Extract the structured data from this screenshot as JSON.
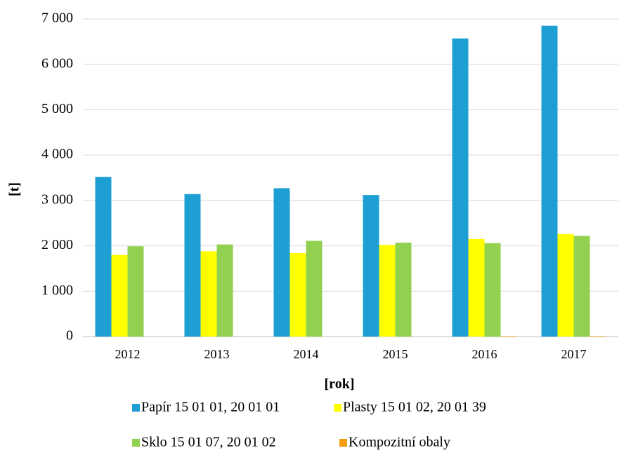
{
  "chart_data": {
    "type": "bar",
    "x_label": "[rok]",
    "y_label": "[t]",
    "categories": [
      "2012",
      "2013",
      "2014",
      "2015",
      "2016",
      "2017"
    ],
    "series": [
      {
        "name": "Papír 15 01 01, 20 01 01",
        "color": "#1e9fd4",
        "values": [
          3520,
          3140,
          3270,
          3120,
          6570,
          6850
        ]
      },
      {
        "name": "Plasty 15 01 02, 20 01 39",
        "color": "#ffff00",
        "values": [
          1800,
          1880,
          1840,
          2020,
          2150,
          2260
        ]
      },
      {
        "name": "Sklo 15 01 07, 20 01 02",
        "color": "#92d050",
        "values": [
          1990,
          2030,
          2110,
          2070,
          2060,
          2220
        ]
      },
      {
        "name": "Kompozitní obaly",
        "color": "#f39c12",
        "values": [
          0,
          0,
          0,
          0,
          10,
          10
        ]
      }
    ],
    "ylim": [
      0,
      7000
    ],
    "yticks": [
      0,
      {
        "value": 1000,
        "label": "1 000"
      },
      {
        "value": 2000,
        "label": "2 000"
      },
      {
        "value": 3000,
        "label": "3 000"
      },
      {
        "value": 4000,
        "label": "4 000"
      },
      {
        "value": 5000,
        "label": "5 000"
      },
      {
        "value": 6000,
        "label": "6 000"
      },
      {
        "value": 7000,
        "label": "7 000"
      }
    ],
    "grid": true,
    "legend": "bottom"
  }
}
